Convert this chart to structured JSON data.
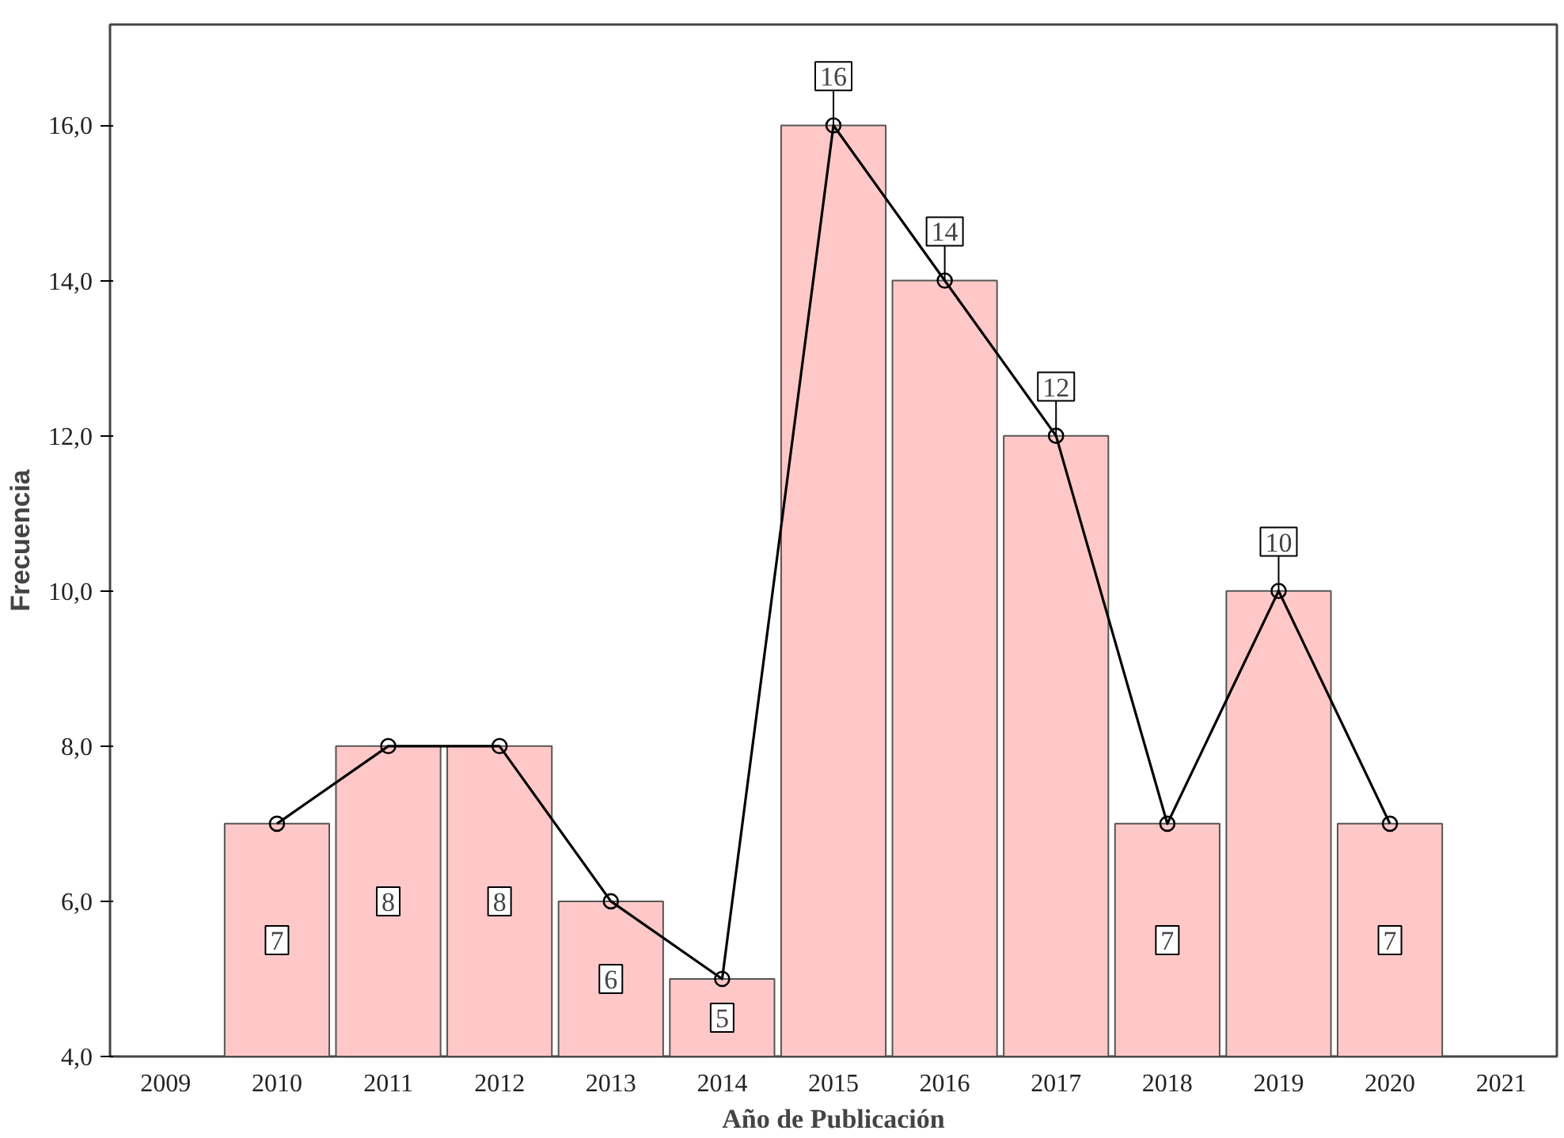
{
  "chart_data": {
    "type": "bar",
    "xlabel": "Año de Publicación",
    "ylabel": "Frecuencia",
    "x": [
      2010,
      2011,
      2012,
      2013,
      2014,
      2015,
      2016,
      2017,
      2018,
      2019,
      2020
    ],
    "series": [
      {
        "color": "#ffc8c8",
        "values": [
          7,
          8,
          8,
          6,
          5,
          16,
          14,
          12,
          7,
          10,
          7
        ],
        "value_labels": [
          "7",
          "8",
          "8",
          "6",
          "5",
          "16",
          "14",
          "12",
          "7",
          "10",
          "7"
        ]
      },
      {
        "type": "line",
        "color": "#000000",
        "values": [
          7,
          8,
          8,
          6,
          5,
          16,
          14,
          12,
          7,
          10,
          7
        ]
      }
    ],
    "marker": "circle",
    "grid": false,
    "xlim": [
      2008.5,
      2021.5
    ],
    "xticks": [
      2009,
      2010,
      2011,
      2012,
      2013,
      2014,
      2015,
      2016,
      2017,
      2018,
      2019,
      2020,
      2021
    ],
    "ylim": [
      4,
      17.3
    ],
    "yticks": [
      {
        "value": 4,
        "label": "4,0"
      },
      {
        "value": 6,
        "label": "6,0"
      },
      {
        "value": 8,
        "label": "8,0"
      },
      {
        "value": 10,
        "label": "10,0"
      },
      {
        "value": 12,
        "label": "12,0"
      },
      {
        "value": 14,
        "label": "14,0"
      },
      {
        "value": 16,
        "label": "16,0"
      }
    ]
  }
}
